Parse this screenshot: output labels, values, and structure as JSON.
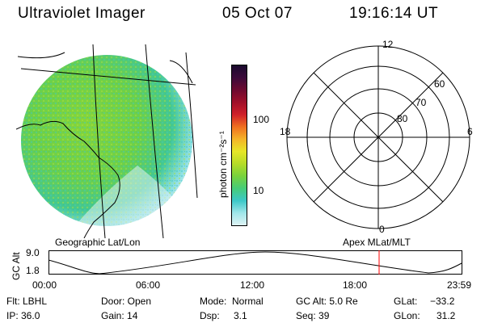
{
  "header": {
    "title": "Ultraviolet Imager",
    "date": "05 Oct 07",
    "time": "19:16:14 UT"
  },
  "image_panel": {
    "projection_label": "Geographic Lat/Lon"
  },
  "colorbar": {
    "unit_label": "photon cm⁻²s⁻¹",
    "scale": "log",
    "tick_labels": [
      "100",
      "10"
    ],
    "colors": [
      "#1a0a2e",
      "#3c0a3a",
      "#6e0a30",
      "#a0102a",
      "#d0202a",
      "#f07020",
      "#f4b428",
      "#e6e628",
      "#b6dc28",
      "#78d23c",
      "#46cc78",
      "#3cc8c8",
      "#a0e6ea",
      "#dff3f4"
    ]
  },
  "polar_plot": {
    "projection_label": "Apex MLat/MLT",
    "mlt_labels": [
      "12",
      "18",
      "6",
      "0"
    ],
    "mlat_labels": [
      "60",
      "70",
      "80"
    ]
  },
  "altitude_plot": {
    "axis_label": "GC Alt",
    "y_ticks": [
      "9.0",
      "1.8"
    ],
    "x_ticks": [
      "00:00",
      "06:00",
      "12:00",
      "18:00",
      "23:59"
    ],
    "current_time_marker_color": "#ff0000"
  },
  "status": {
    "filter": "Flt: LBHL",
    "ip": "IP: 36.0",
    "door": "Door: Open",
    "gain": "Gain: 14",
    "mode_label": "Mode:",
    "mode_value": "Normal",
    "dsp_label": "Dsp:",
    "dsp_value": "3.1",
    "gc_alt": "GC Alt: 5.0 Re",
    "seq": "Seq: 39",
    "glat_label": "GLat:",
    "glat_value": "−33.2",
    "glon_label": "GLon:",
    "glon_value": "31.2"
  },
  "colors": {
    "image_primary": "#78d23c",
    "image_secondary": "#3cc8c8",
    "image_dim": "#a0e6ea",
    "marker": "#ff0000"
  }
}
